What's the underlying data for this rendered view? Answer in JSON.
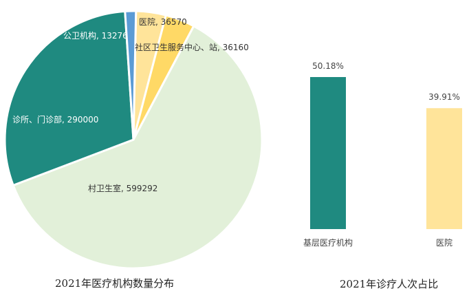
{
  "chart_data": [
    {
      "type": "pie",
      "title": "2021年医疗机构数量分布",
      "slices": [
        {
          "label": "医院",
          "value": 36570,
          "color": "#ffe49a",
          "display": "医院, 36570"
        },
        {
          "label": "社区卫生服务中心、站",
          "value": 36160,
          "color": "#ffd966",
          "display": "社区卫生服务中心、站, 36160"
        },
        {
          "label": "村卫生室",
          "value": 599292,
          "color": "#e2f0d9",
          "display": "村卫生室, 599292"
        },
        {
          "label": "诊所、门诊部",
          "value": 290000,
          "color": "#1f8a80",
          "display": "诊所、门诊部, 290000"
        },
        {
          "label": "公卫机构",
          "value": 13276,
          "color": "#5b9bd5",
          "display": "公卫机构, 13276"
        }
      ]
    },
    {
      "type": "bar",
      "title": "2021年诊疗人次占比",
      "categories": [
        "基层医疗机构",
        "医院"
      ],
      "values": [
        50.18,
        39.91
      ],
      "value_labels": [
        "50.18%",
        "39.91%"
      ],
      "colors": [
        "#1f8a80",
        "#ffe49a"
      ],
      "unit": "%"
    }
  ]
}
